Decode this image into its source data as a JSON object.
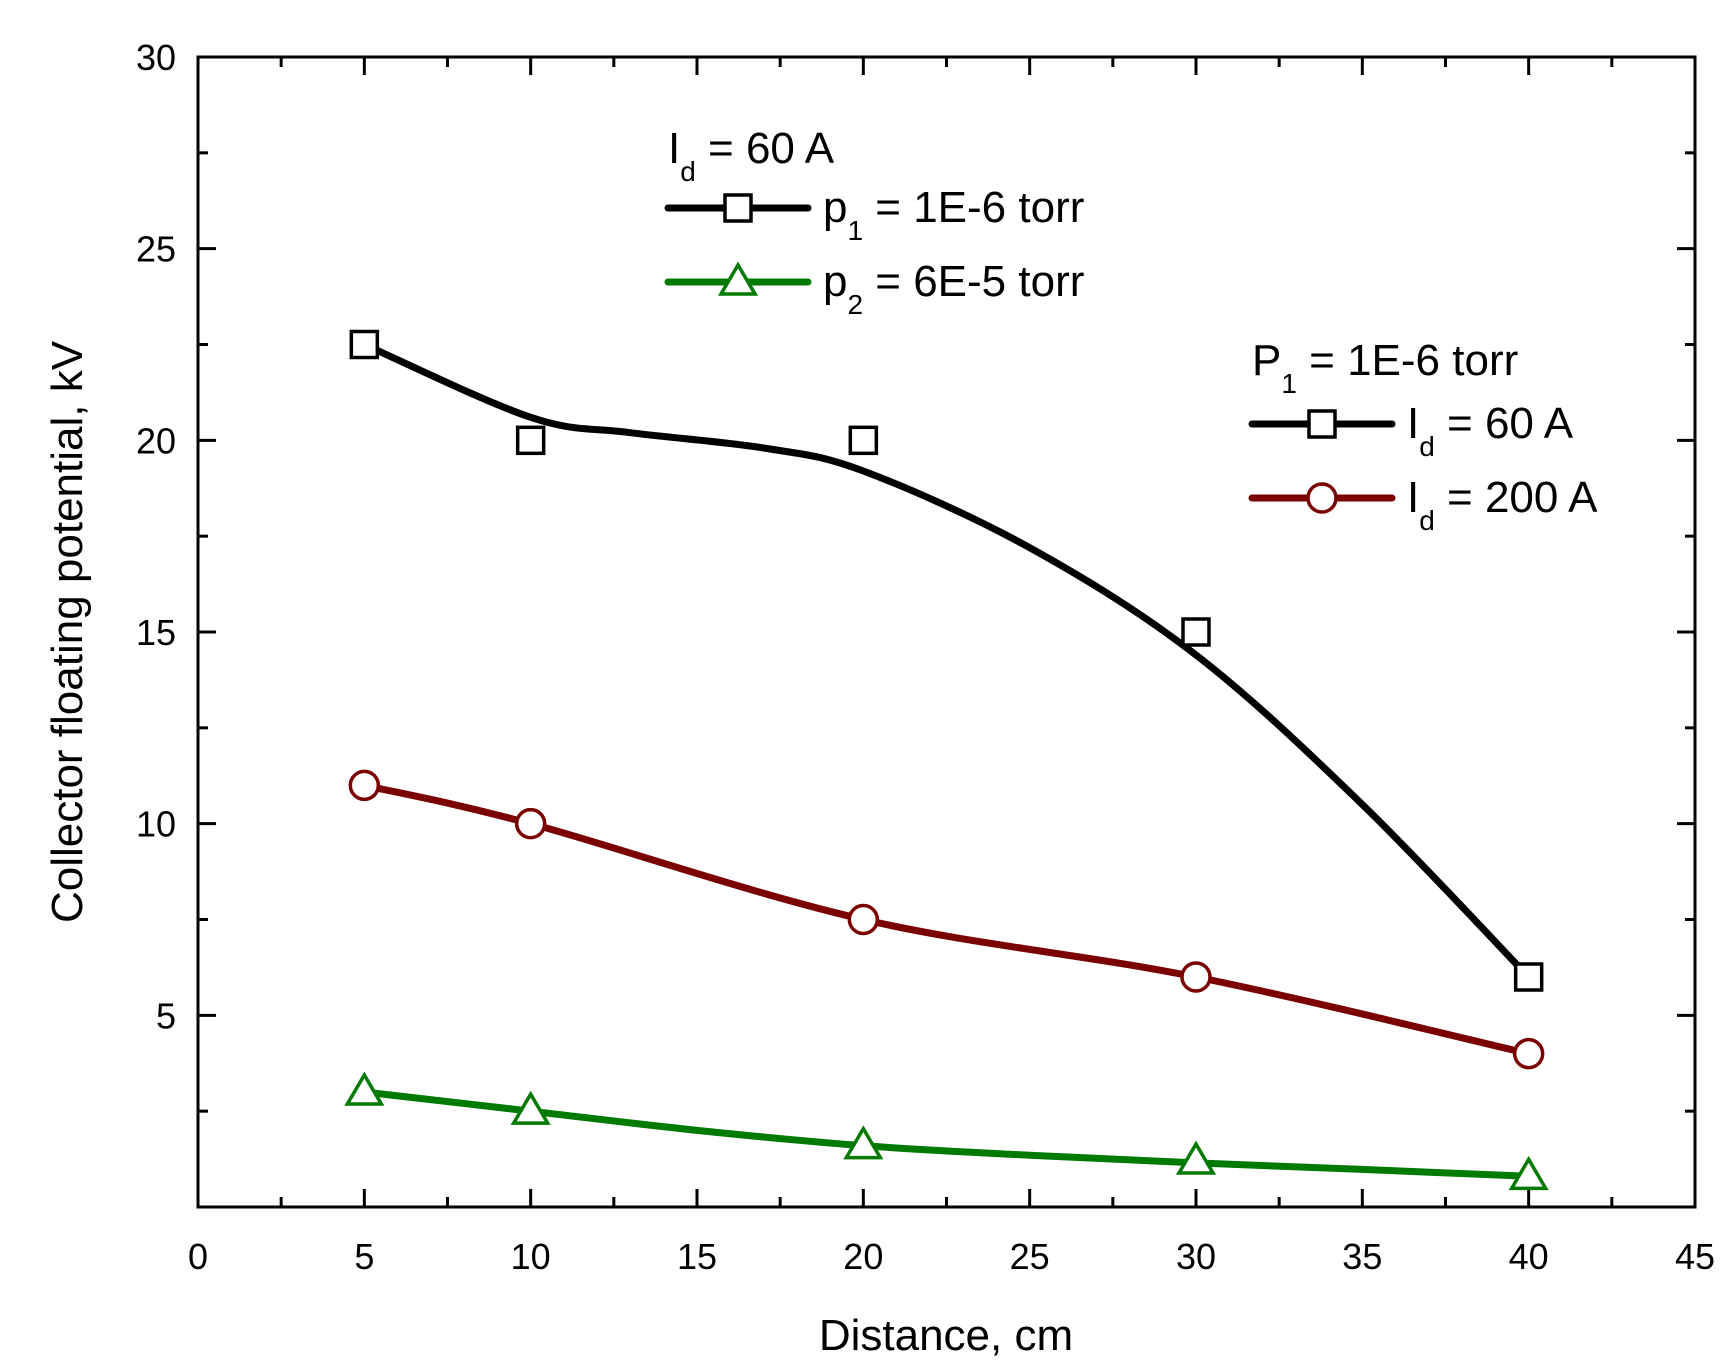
{
  "chart_data": {
    "type": "line",
    "xlabel": "Distance, cm",
    "ylabel": "Collector floating potential, kV",
    "xlim": [
      0,
      45
    ],
    "ylim": [
      0,
      30
    ],
    "xticks": [
      0,
      5,
      10,
      15,
      20,
      25,
      30,
      35,
      40,
      45
    ],
    "yticks": [
      5,
      10,
      15,
      20,
      25,
      30
    ],
    "grid": false,
    "series": [
      {
        "name": "p1 = 1E-6 torr, Id = 60 A",
        "color": "#000000",
        "marker": "square",
        "x": [
          5,
          10,
          20,
          30,
          40
        ],
        "y": [
          22.5,
          20.0,
          20.0,
          15.0,
          6.0
        ],
        "fit_x": [
          5,
          10,
          13,
          17,
          20,
          25,
          30,
          35,
          40
        ],
        "fit_y": [
          22.5,
          20.6,
          20.2,
          19.8,
          19.2,
          17.2,
          14.4,
          10.5,
          6.0
        ]
      },
      {
        "name": "Id = 200 A",
        "color": "#7b0000",
        "marker": "circle",
        "x": [
          5,
          10,
          20,
          30,
          40
        ],
        "y": [
          11.0,
          10.0,
          7.5,
          6.0,
          4.0
        ]
      },
      {
        "name": "p2 = 6E-5 torr",
        "color": "#007a00",
        "marker": "triangle",
        "x": [
          5,
          10,
          20,
          30,
          40
        ],
        "y": [
          3.0,
          2.5,
          1.6,
          1.2,
          0.8
        ],
        "fit_x": [
          5,
          10,
          15,
          20,
          25,
          30,
          35,
          40
        ],
        "fit_y": [
          3.0,
          2.5,
          2.0,
          1.6,
          1.35,
          1.15,
          0.98,
          0.8
        ]
      }
    ],
    "legend_groups": [
      {
        "position": "top-center",
        "title_main": "I",
        "title_sub": "d",
        "title_rest": " = 60 A",
        "entries": [
          {
            "main": "p",
            "sub": "1",
            "rest": " = 1E-6 torr",
            "color": "#000000",
            "marker": "square"
          },
          {
            "main": "p",
            "sub": "2",
            "rest": " = 6E-5 torr",
            "color": "#007a00",
            "marker": "triangle"
          }
        ]
      },
      {
        "position": "right",
        "title_main": "P",
        "title_sub": "1",
        "title_rest": " = 1E-6 torr",
        "entries": [
          {
            "main": "I",
            "sub": "d",
            "rest": " = 60 A",
            "color": "#000000",
            "marker": "square"
          },
          {
            "main": "I",
            "sub": "d",
            "rest": " = 200 A",
            "color": "#7b0000",
            "marker": "circle"
          }
        ]
      }
    ]
  }
}
